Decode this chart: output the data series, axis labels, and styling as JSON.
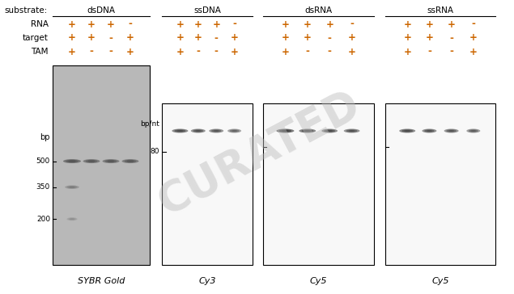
{
  "fig_width": 6.35,
  "fig_height": 3.64,
  "background_color": "#ffffff",
  "substrate_label": "substrate:",
  "substrates": [
    "dsDNA",
    "ssDNA",
    "dsRNA",
    "ssRNA"
  ],
  "row_labels": [
    "RNA",
    "target",
    "TAM"
  ],
  "conditions": {
    "dsDNA": [
      [
        "+",
        "+",
        "+",
        "-"
      ],
      [
        "+",
        "+",
        "-",
        "+"
      ],
      [
        "+",
        "-",
        "-",
        "+"
      ]
    ],
    "ssDNA": [
      [
        "+",
        "+",
        "+",
        "-"
      ],
      [
        "+",
        "+",
        "-",
        "+"
      ],
      [
        "+",
        "-",
        "-",
        "+"
      ]
    ],
    "dsRNA": [
      [
        "+",
        "+",
        "+",
        "-"
      ],
      [
        "+",
        "+",
        "-",
        "+"
      ],
      [
        "+",
        "-",
        "-",
        "+"
      ]
    ],
    "ssRNA": [
      [
        "+",
        "+",
        "+",
        "-"
      ],
      [
        "+",
        "+",
        "-",
        "+"
      ],
      [
        "+",
        "-",
        "-",
        "+"
      ]
    ]
  },
  "gel_labels": [
    "SYBR Gold",
    "Cy3",
    "Cy5",
    "Cy5"
  ],
  "gel_bg_colors": [
    "#b8b8b8",
    "#f8f8f8",
    "#f8f8f8",
    "#f8f8f8"
  ],
  "bp_label": "bp",
  "bp_nt_label": "bp/nt",
  "watermark_text": "CURATED",
  "watermark_color": "#bbbbbb",
  "watermark_alpha": 0.45,
  "label_color": "#000000",
  "plus_minus_color": "#cc6600",
  "text_color": "#000000",
  "font_size_substrate": 7.5,
  "font_size_labels": 7.5,
  "font_size_plusminus": 8.5,
  "font_size_gel_label": 8,
  "font_size_bp": 6.5,
  "font_size_bpnt": 6.5
}
